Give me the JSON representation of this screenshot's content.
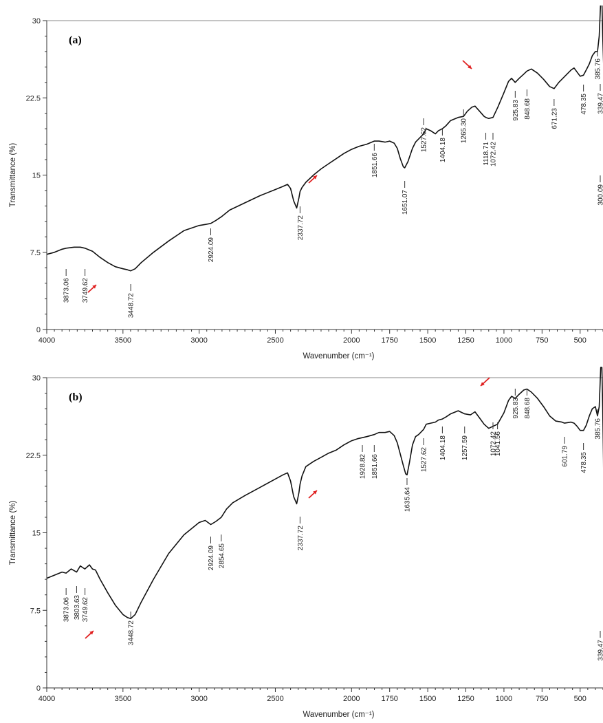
{
  "chart_data": [
    {
      "type": "line",
      "panel_label": "(a)",
      "xlabel": "Wavenumber (cm⁻¹)",
      "ylabel": "Transmittance (%)",
      "xlim": [
        4000,
        350
      ],
      "ylim": [
        0,
        30
      ],
      "xticks": [
        "4000",
        "3500",
        "3000",
        "2500",
        "2000",
        "1750",
        "1500",
        "1250",
        "1000",
        "750",
        "500"
      ],
      "yticks": [
        "0",
        "7.5",
        "15",
        "22.5",
        "30"
      ],
      "grid": false,
      "series": [
        {
          "x": [
            4000,
            3950,
            3900,
            3873,
            3820,
            3780,
            3749,
            3700,
            3650,
            3600,
            3550,
            3500,
            3470,
            3449,
            3420,
            3380,
            3300,
            3200,
            3100,
            3000,
            2960,
            2924,
            2890,
            2850,
            2800,
            2700,
            2600,
            2500,
            2450,
            2420,
            2400,
            2380,
            2360,
            2345,
            2338,
            2325,
            2300,
            2250,
            2200,
            2150,
            2100,
            2050,
            2000,
            1950,
            1900,
            1851,
            1820,
            1780,
            1750,
            1720,
            1700,
            1680,
            1660,
            1651,
            1630,
            1600,
            1580,
            1560,
            1540,
            1527,
            1510,
            1480,
            1450,
            1430,
            1404,
            1380,
            1350,
            1300,
            1265,
            1240,
            1210,
            1190,
            1160,
            1130,
            1119,
            1100,
            1072,
            1040,
            1000,
            970,
            950,
            926,
            900,
            870,
            849,
            820,
            780,
            740,
            700,
            671,
            640,
            600,
            560,
            540,
            520,
            500,
            478,
            460,
            440,
            420,
            400,
            386,
            375,
            365,
            357,
            352,
            345,
            339,
            330,
            320,
            310,
            300,
            297
          ],
          "y": [
            7.3,
            7.5,
            7.8,
            7.9,
            8.0,
            8.0,
            7.9,
            7.6,
            7.0,
            6.5,
            6.1,
            5.9,
            5.8,
            5.7,
            5.9,
            6.5,
            7.5,
            8.6,
            9.6,
            10.1,
            10.2,
            10.3,
            10.6,
            11.0,
            11.6,
            12.3,
            13.0,
            13.6,
            13.9,
            14.1,
            13.7,
            12.5,
            11.8,
            12.8,
            13.4,
            13.8,
            14.3,
            15.0,
            15.6,
            16.1,
            16.6,
            17.1,
            17.5,
            17.8,
            18.0,
            18.3,
            18.3,
            18.2,
            18.3,
            18.1,
            17.6,
            16.6,
            15.8,
            15.7,
            16.3,
            17.6,
            18.2,
            18.5,
            18.8,
            19.0,
            19.5,
            19.3,
            19.0,
            19.3,
            19.5,
            19.8,
            20.3,
            20.6,
            20.7,
            21.2,
            21.6,
            21.7,
            21.2,
            20.7,
            20.6,
            20.5,
            20.6,
            21.6,
            23.0,
            24.1,
            24.4,
            24.0,
            24.4,
            24.8,
            25.1,
            25.3,
            24.9,
            24.3,
            23.6,
            23.4,
            24.0,
            24.6,
            25.2,
            25.4,
            25.0,
            24.6,
            24.7,
            25.2,
            25.8,
            26.6,
            27.0,
            27.0,
            28.5,
            32,
            32,
            28.5,
            25.2,
            24.5,
            21.0,
            18.5,
            16.5,
            15.3,
            15.0
          ]
        }
      ],
      "annotations": [
        "3873.06",
        "3749.62",
        "3448.72",
        "2924.09",
        "2337.72",
        "1851.66",
        "1651.07",
        "1527.62",
        "1404.18",
        "1265.30",
        "1118.71",
        "1072.42",
        "925.83",
        "848.68",
        "671.23",
        "478.35",
        "385.76",
        "339.47",
        "300.09"
      ]
    },
    {
      "type": "line",
      "panel_label": "(b)",
      "xlabel": "Wavenumber (cm⁻¹)",
      "ylabel": "Transmittance (%)",
      "xlim": [
        4000,
        350
      ],
      "ylim": [
        0,
        30
      ],
      "xticks": [
        "4000",
        "3500",
        "3000",
        "2500",
        "2000",
        "1750",
        "1500",
        "1250",
        "1000",
        "750",
        "500"
      ],
      "yticks": [
        "0",
        "7.5",
        "15",
        "22.5",
        "30"
      ],
      "grid": false,
      "series": [
        {
          "x": [
            4000,
            3950,
            3900,
            3873,
            3840,
            3804,
            3780,
            3750,
            3720,
            3700,
            3680,
            3650,
            3600,
            3550,
            3500,
            3470,
            3449,
            3420,
            3380,
            3300,
            3200,
            3100,
            3000,
            2960,
            2924,
            2890,
            2855,
            2820,
            2780,
            2700,
            2600,
            2500,
            2450,
            2420,
            2400,
            2380,
            2360,
            2345,
            2338,
            2325,
            2300,
            2250,
            2200,
            2150,
            2100,
            2050,
            2000,
            1960,
            1929,
            1900,
            1851,
            1820,
            1780,
            1750,
            1720,
            1700,
            1680,
            1660,
            1645,
            1636,
            1620,
            1600,
            1580,
            1560,
            1540,
            1527,
            1510,
            1480,
            1450,
            1430,
            1404,
            1380,
            1350,
            1300,
            1258,
            1220,
            1190,
            1160,
            1130,
            1100,
            1072,
            1042,
            1000,
            970,
            950,
            926,
            900,
            870,
            849,
            820,
            780,
            740,
            700,
            660,
            620,
            602,
            560,
            540,
            520,
            500,
            478,
            460,
            440,
            420,
            400,
            386,
            375,
            365,
            357,
            352,
            347,
            343,
            339,
            335,
            330,
            325,
            320,
            315,
            310,
            300,
            297
          ],
          "y": [
            10.6,
            10.9,
            11.2,
            11.1,
            11.5,
            11.2,
            11.8,
            11.5,
            11.9,
            11.5,
            11.4,
            10.5,
            9.2,
            8.0,
            7.1,
            6.8,
            6.7,
            7.1,
            8.3,
            10.5,
            13.0,
            14.8,
            16.0,
            16.2,
            15.8,
            16.1,
            16.5,
            17.3,
            17.9,
            18.6,
            19.4,
            20.2,
            20.6,
            20.8,
            20.0,
            18.5,
            17.8,
            18.9,
            19.7,
            20.5,
            21.4,
            21.9,
            22.3,
            22.7,
            23.0,
            23.5,
            23.9,
            24.1,
            24.2,
            24.3,
            24.5,
            24.7,
            24.7,
            24.8,
            24.4,
            23.7,
            22.6,
            21.5,
            20.7,
            20.6,
            21.8,
            23.5,
            24.3,
            24.5,
            24.8,
            25.0,
            25.5,
            25.6,
            25.7,
            25.9,
            26.0,
            26.2,
            26.5,
            26.8,
            26.5,
            26.4,
            26.7,
            26.1,
            25.5,
            25.1,
            25.3,
            25.5,
            26.6,
            27.8,
            28.2,
            28.0,
            28.4,
            28.8,
            28.9,
            28.6,
            28.0,
            27.2,
            26.3,
            25.8,
            25.7,
            25.6,
            25.7,
            25.6,
            25.3,
            24.9,
            24.9,
            25.4,
            26.3,
            27.0,
            27.2,
            26.3,
            27.2,
            31,
            31,
            27,
            22,
            15.0,
            7.3,
            8.0,
            12.0,
            20.0,
            30.5,
            31,
            26,
            22.5,
            22.0
          ]
        }
      ],
      "annotations": [
        "3873.06",
        "3803.63",
        "3749.62",
        "3448.72",
        "2924.09",
        "2854.65",
        "2337.72",
        "1928.82",
        "1851.66",
        "1635.64",
        "1527.62",
        "1404.18",
        "1257.59",
        "1072.42",
        "1041.56",
        "925.83",
        "848.68",
        "601.79",
        "478.35",
        "385.76",
        "339.47"
      ]
    }
  ]
}
